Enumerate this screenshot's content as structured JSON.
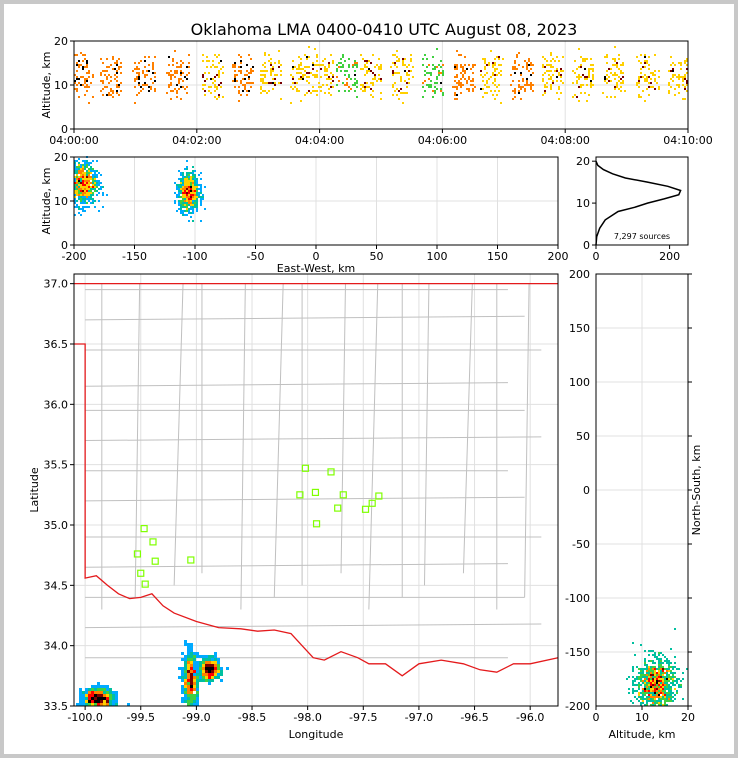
{
  "title": "Oklahoma LMA 0400-0410 UTC August 08, 2023",
  "chart_data": [
    {
      "id": "time-altitude",
      "type": "heatmap",
      "ylabel": "Altitude, km",
      "xlim_minutes": [
        0,
        10
      ],
      "ylim": [
        0,
        20
      ],
      "x_ticks": [
        "04:00:00",
        "04:02:00",
        "04:04:00",
        "04:06:00",
        "04:08:00",
        "04:10:00"
      ],
      "y_ticks": [
        0,
        10,
        20
      ],
      "flash_times_min": [
        0.15,
        0.6,
        1.15,
        1.7,
        2.25,
        2.75,
        3.2,
        3.7,
        4.05,
        4.45,
        4.85,
        5.35,
        5.85,
        6.35,
        6.8,
        7.3,
        7.8,
        8.3,
        8.8,
        9.35,
        9.85
      ],
      "core_altitude_km": [
        8,
        16
      ],
      "grid": true
    },
    {
      "id": "ew-altitude",
      "type": "heatmap",
      "xlabel": "East-West, km",
      "ylabel": "Altitude, km",
      "xlim": [
        -200,
        200
      ],
      "ylim": [
        0,
        20
      ],
      "x_ticks": [
        -200,
        -150,
        -100,
        -50,
        0,
        50,
        100,
        150,
        200
      ],
      "y_ticks": [
        0,
        10,
        20
      ],
      "clusters": [
        {
          "x_center": -193,
          "x_spread": 10,
          "z_center": 14,
          "z_spread": 3.5
        },
        {
          "x_center": -105,
          "x_spread": 7,
          "z_center": 12,
          "z_spread": 3
        }
      ],
      "grid": true
    },
    {
      "id": "altitude-histogram",
      "type": "line",
      "xlim": [
        0,
        250
      ],
      "ylim": [
        0,
        21
      ],
      "x_ticks": [
        0,
        200
      ],
      "y_ticks": [
        0,
        10,
        20
      ],
      "annotation": "7,297 sources",
      "profile_alt_km": [
        0,
        2,
        4,
        6,
        8,
        9,
        10,
        11,
        12,
        13,
        14,
        15,
        16,
        17,
        18,
        19,
        20
      ],
      "profile_counts": [
        0,
        2,
        10,
        25,
        60,
        105,
        140,
        185,
        225,
        230,
        195,
        140,
        80,
        45,
        20,
        5,
        0
      ]
    },
    {
      "id": "plan-view",
      "type": "scatter",
      "xlabel": "Longitude",
      "ylabel": "Latitude",
      "xlim": [
        -100.1,
        -95.75
      ],
      "ylim": [
        33.5,
        37.08
      ],
      "x_ticks": [
        -100.0,
        -99.5,
        -99.0,
        -98.5,
        -98.0,
        -97.5,
        -97.0,
        -96.5,
        -96.0
      ],
      "y_ticks": [
        33.5,
        34.0,
        34.5,
        35.0,
        35.5,
        36.0,
        36.5,
        37.0
      ],
      "stations": [
        [
          -99.47,
          34.97
        ],
        [
          -99.39,
          34.86
        ],
        [
          -99.53,
          34.76
        ],
        [
          -99.37,
          34.7
        ],
        [
          -99.5,
          34.6
        ],
        [
          -99.46,
          34.51
        ],
        [
          -99.05,
          34.71
        ],
        [
          -98.02,
          35.47
        ],
        [
          -97.79,
          35.44
        ],
        [
          -98.07,
          35.25
        ],
        [
          -97.93,
          35.27
        ],
        [
          -97.68,
          35.25
        ],
        [
          -97.36,
          35.24
        ],
        [
          -97.42,
          35.18
        ],
        [
          -97.73,
          35.14
        ],
        [
          -97.48,
          35.13
        ],
        [
          -97.92,
          35.01
        ]
      ],
      "clusters": [
        {
          "lon": -99.88,
          "lat": 33.56,
          "spread_lon": 0.12,
          "spread_lat": 0.06
        },
        {
          "lon": -99.05,
          "lat": 33.72,
          "spread_lon": 0.06,
          "spread_lat": 0.15
        },
        {
          "lon": -98.88,
          "lat": 33.8,
          "spread_lon": 0.08,
          "spread_lat": 0.06
        }
      ],
      "grid": true
    },
    {
      "id": "altitude-ns",
      "type": "heatmap",
      "xlabel": "Altitude, km",
      "ylabel": "North-South, km",
      "xlim": [
        0,
        20
      ],
      "ylim": [
        -200,
        200
      ],
      "x_ticks": [
        0,
        10,
        20
      ],
      "y_ticks": [
        -200,
        -150,
        -100,
        -50,
        0,
        50,
        100,
        150,
        200
      ],
      "clusters": [
        {
          "z_center": 13,
          "z_spread": 3.5,
          "y_center": -180,
          "y_spread": 12
        }
      ],
      "grid": true
    }
  ],
  "colors": {
    "state_border": "#e41a1c",
    "county_lines": "#c0c0c0",
    "stations": "#7fff00",
    "grid": "#e0e0e0",
    "density_scale": [
      "#0000ff",
      "#00aaff",
      "#00c0a0",
      "#40d040",
      "#ffd000",
      "#ff8000",
      "#ff0000",
      "#7a0000",
      "#000000"
    ]
  }
}
